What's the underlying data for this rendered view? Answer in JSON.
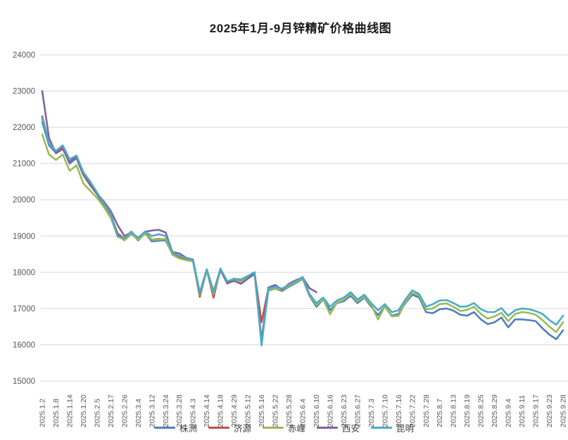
{
  "page": {
    "background": "#FFFFFF"
  },
  "chart_data": {
    "type": "line",
    "title": "2025年1月-9月锌精矿价格曲线图",
    "legend_position": "bottom",
    "grid": "horizontal",
    "grid_color": "#D9D9D9",
    "axis_text_color": "#595959",
    "points_per_tick": 2,
    "x_tick_labels": [
      "2025.1.2",
      "2025.1.8",
      "2025.1.14",
      "2025.1.20",
      "2025.2.5",
      "2025.2.17",
      "2025.2.26",
      "2025.3.4",
      "2025.3.12",
      "2025.3.24",
      "2025.3.28",
      "2025.4.3",
      "2025.4.14",
      "2025.4.18",
      "2025.4.29",
      "2025.5.12",
      "2025.5.16",
      "2025.5.22",
      "2025.5.28",
      "2025.6.4",
      "2025.6.10",
      "2025.6.16",
      "2025.6.23",
      "2025.6.27",
      "2025.7.3",
      "2025.7.10",
      "2025.7.16",
      "2025.7.22",
      "2025.7.28",
      "2025.8.7",
      "2025.8.13",
      "2025.8.19",
      "2025.8.25",
      "2025.8.29",
      "2025.9.4",
      "2025.9.11",
      "2025.9.17",
      "2025.9.23",
      "2025.9.28"
    ],
    "y_axis": {
      "min": 15000,
      "max": 24000,
      "step": 1000,
      "tick_labels": [
        "24000",
        "23000",
        "22000",
        "21000",
        "20000",
        "19000",
        "18000",
        "17000",
        "16000",
        "15000"
      ]
    },
    "series": [
      {
        "name": "株洲",
        "color": "#4F81BD",
        "values": [
          22150,
          21500,
          21300,
          21420,
          21000,
          21150,
          20680,
          20400,
          20150,
          19850,
          19550,
          19050,
          18900,
          19080,
          18880,
          19080,
          18850,
          18870,
          18880,
          18500,
          18400,
          18350,
          18300,
          17400,
          18050,
          17420,
          18080,
          17700,
          17800,
          17750,
          17850,
          17950,
          16100,
          17500,
          17550,
          17480,
          17600,
          17700,
          17820,
          17350,
          17050,
          17250,
          16950,
          17150,
          17200,
          17350,
          17150,
          17300,
          17050,
          16820,
          17050,
          16800,
          16850,
          17150,
          17380,
          17300,
          16900,
          16870,
          16980,
          17000,
          16940,
          16830,
          16800,
          16900,
          16700,
          16570,
          16620,
          16750,
          16480,
          16700,
          16700,
          16680,
          16650,
          16450,
          16280,
          16150,
          16400
        ]
      },
      {
        "name": "济源",
        "color": "#C0504D",
        "values": [
          22300,
          21550,
          21330,
          21460,
          21050,
          21180,
          20700,
          20420,
          20170,
          19880,
          19580,
          19070,
          18920,
          19120,
          18900,
          19100,
          18900,
          18920,
          18900,
          18520,
          18420,
          18370,
          18320,
          17320,
          18060,
          17300,
          18100,
          17720,
          17820,
          17770,
          17870,
          17970,
          16620,
          17550,
          17620
        ]
      },
      {
        "name": "赤峰",
        "color": "#9BBB59",
        "values": [
          21800,
          21250,
          21100,
          21250,
          20800,
          20950,
          20450,
          20250,
          20050,
          19800,
          19500,
          19000,
          18880,
          19050,
          18900,
          19060,
          18900,
          18900,
          18920,
          18480,
          18380,
          18330,
          18300,
          17380,
          18030,
          17400,
          18060,
          17680,
          17780,
          17740,
          17840,
          17940,
          16060,
          17520,
          17560,
          17500,
          17620,
          17720,
          17840,
          17380,
          17100,
          17260,
          16840,
          17160,
          17240,
          17400,
          17200,
          17330,
          17100,
          16700,
          17060,
          16780,
          16800,
          17180,
          17430,
          17350,
          16980,
          17000,
          17120,
          17140,
          17050,
          16930,
          16960,
          17050,
          16850,
          16720,
          16780,
          16880,
          16650,
          16850,
          16900,
          16880,
          16830,
          16680,
          16500,
          16350,
          16620
        ]
      },
      {
        "name": "西安",
        "color": "#8064A2",
        "values": [
          23000,
          21700,
          21280,
          21400,
          21050,
          21200,
          20720,
          20450,
          20180,
          19950,
          19690,
          19300,
          19000,
          19100,
          18950,
          19120,
          19150,
          19170,
          19100,
          18560,
          18520,
          18400,
          18350,
          17420,
          18080,
          17480,
          18060,
          17700,
          17760,
          17680,
          17820,
          17960,
          16120,
          17580,
          17650,
          17520,
          17680,
          17780,
          17860,
          17560,
          17450
        ]
      },
      {
        "name": "昆明",
        "color": "#4BACC6",
        "values": [
          22250,
          21550,
          21350,
          21500,
          21120,
          21220,
          20760,
          20500,
          20200,
          19900,
          19620,
          18980,
          18950,
          19100,
          18950,
          19120,
          19000,
          19050,
          19000,
          18550,
          18450,
          18400,
          18330,
          17450,
          18080,
          17450,
          18100,
          17750,
          17820,
          17800,
          17900,
          18000,
          15980,
          17550,
          17600,
          17550,
          17650,
          17750,
          17870,
          17400,
          17150,
          17300,
          17050,
          17220,
          17300,
          17450,
          17250,
          17380,
          17150,
          16950,
          17120,
          16900,
          16950,
          17250,
          17500,
          17400,
          17050,
          17120,
          17220,
          17230,
          17150,
          17050,
          17060,
          17150,
          16980,
          16900,
          16900,
          17010,
          16800,
          16950,
          17000,
          16980,
          16930,
          16850,
          16680,
          16550,
          16800
        ]
      }
    ]
  }
}
